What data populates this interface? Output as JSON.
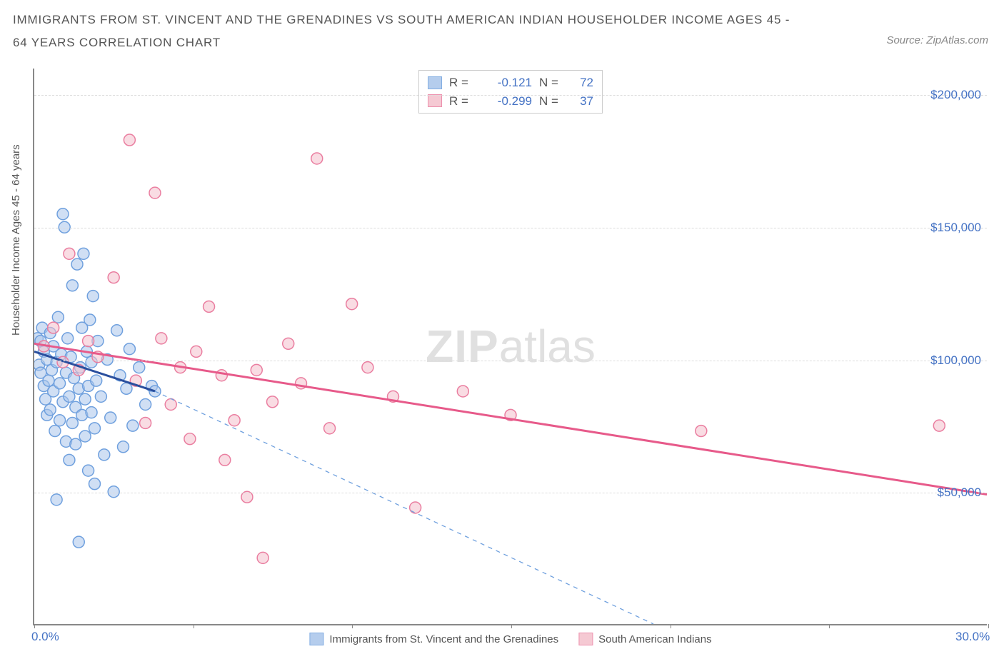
{
  "header": {
    "title": "IMMIGRANTS FROM ST. VINCENT AND THE GRENADINES VS SOUTH AMERICAN INDIAN HOUSEHOLDER INCOME AGES 45 - 64 YEARS CORRELATION CHART",
    "source": "Source: ZipAtlas.com"
  },
  "chart": {
    "type": "scatter",
    "ylabel": "Householder Income Ages 45 - 64 years",
    "watermark_bold": "ZIP",
    "watermark_light": "atlas",
    "xlim": [
      0,
      30
    ],
    "ylim": [
      0,
      210000
    ],
    "x_ticks_percent": [
      0,
      5,
      10,
      15,
      20,
      25,
      30
    ],
    "x_tick_labels": {
      "0": "0.0%",
      "30": "30.0%"
    },
    "y_ticks": [
      50000,
      100000,
      150000,
      200000
    ],
    "y_tick_labels": {
      "50000": "$50,000",
      "100000": "$100,000",
      "150000": "$150,000",
      "200000": "$200,000"
    },
    "gridlines_y": [
      50000,
      100000,
      150000,
      200000
    ],
    "background_color": "#ffffff",
    "grid_color": "#dcdcdc",
    "axis_color": "#888888",
    "point_radius": 8,
    "point_stroke_width": 1.5,
    "series": [
      {
        "name": "Immigrants from St. Vincent and the Grenadines",
        "color_fill": "#a9c5eb",
        "color_stroke": "#6fa0de",
        "fill_opacity": 0.55,
        "legend": {
          "R": "-0.121",
          "N": "72"
        },
        "trend_solid": {
          "x1": 0,
          "y1": 103000,
          "x2": 3.8,
          "y2": 88000,
          "color": "#2a4f9e",
          "width": 3
        },
        "trend_dash": {
          "x1": 3.8,
          "y1": 88000,
          "x2": 19.5,
          "y2": 0,
          "color": "#6fa0de",
          "width": 1.3,
          "dash": "6,6"
        },
        "points": [
          [
            0.1,
            108000
          ],
          [
            0.15,
            98000
          ],
          [
            0.2,
            107000
          ],
          [
            0.2,
            95000
          ],
          [
            0.25,
            112000
          ],
          [
            0.3,
            90000
          ],
          [
            0.3,
            103000
          ],
          [
            0.35,
            85000
          ],
          [
            0.4,
            100000
          ],
          [
            0.4,
            79000
          ],
          [
            0.45,
            92000
          ],
          [
            0.5,
            110000
          ],
          [
            0.5,
            81000
          ],
          [
            0.55,
            96000
          ],
          [
            0.6,
            105000
          ],
          [
            0.6,
            88000
          ],
          [
            0.65,
            73000
          ],
          [
            0.7,
            99000
          ],
          [
            0.7,
            47000
          ],
          [
            0.75,
            116000
          ],
          [
            0.8,
            91000
          ],
          [
            0.8,
            77000
          ],
          [
            0.85,
            102000
          ],
          [
            0.9,
            84000
          ],
          [
            0.9,
            155000
          ],
          [
            0.95,
            150000
          ],
          [
            1.0,
            95000
          ],
          [
            1.0,
            69000
          ],
          [
            1.05,
            108000
          ],
          [
            1.1,
            86000
          ],
          [
            1.1,
            62000
          ],
          [
            1.15,
            101000
          ],
          [
            1.2,
            76000
          ],
          [
            1.2,
            128000
          ],
          [
            1.25,
            93000
          ],
          [
            1.3,
            82000
          ],
          [
            1.3,
            68000
          ],
          [
            1.35,
            136000
          ],
          [
            1.4,
            89000
          ],
          [
            1.4,
            31000
          ],
          [
            1.45,
            97000
          ],
          [
            1.5,
            79000
          ],
          [
            1.5,
            112000
          ],
          [
            1.55,
            140000
          ],
          [
            1.6,
            85000
          ],
          [
            1.6,
            71000
          ],
          [
            1.65,
            103000
          ],
          [
            1.7,
            90000
          ],
          [
            1.7,
            58000
          ],
          [
            1.75,
            115000
          ],
          [
            1.8,
            80000
          ],
          [
            1.8,
            99000
          ],
          [
            1.85,
            124000
          ],
          [
            1.9,
            74000
          ],
          [
            1.9,
            53000
          ],
          [
            1.95,
            92000
          ],
          [
            2.0,
            107000
          ],
          [
            2.1,
            86000
          ],
          [
            2.2,
            64000
          ],
          [
            2.3,
            100000
          ],
          [
            2.4,
            78000
          ],
          [
            2.5,
            50000
          ],
          [
            2.6,
            111000
          ],
          [
            2.7,
            94000
          ],
          [
            2.8,
            67000
          ],
          [
            2.9,
            89000
          ],
          [
            3.0,
            104000
          ],
          [
            3.1,
            75000
          ],
          [
            3.3,
            97000
          ],
          [
            3.5,
            83000
          ],
          [
            3.7,
            90000
          ],
          [
            3.8,
            88000
          ]
        ]
      },
      {
        "name": "South American Indians",
        "color_fill": "#f4c0cc",
        "color_stroke": "#ea7ea0",
        "fill_opacity": 0.55,
        "legend": {
          "R": "-0.299",
          "N": "37"
        },
        "trend_solid": {
          "x1": 0,
          "y1": 106000,
          "x2": 30,
          "y2": 49000,
          "color": "#e75a8a",
          "width": 3
        },
        "points": [
          [
            0.3,
            105000
          ],
          [
            0.6,
            112000
          ],
          [
            0.9,
            99000
          ],
          [
            1.1,
            140000
          ],
          [
            1.4,
            96000
          ],
          [
            1.7,
            107000
          ],
          [
            2.0,
            101000
          ],
          [
            2.5,
            131000
          ],
          [
            3.0,
            183000
          ],
          [
            3.2,
            92000
          ],
          [
            3.5,
            76000
          ],
          [
            3.8,
            163000
          ],
          [
            4.0,
            108000
          ],
          [
            4.3,
            83000
          ],
          [
            4.6,
            97000
          ],
          [
            4.9,
            70000
          ],
          [
            5.1,
            103000
          ],
          [
            5.5,
            120000
          ],
          [
            5.9,
            94000
          ],
          [
            6.3,
            77000
          ],
          [
            6.7,
            48000
          ],
          [
            7.0,
            96000
          ],
          [
            7.2,
            25000
          ],
          [
            7.5,
            84000
          ],
          [
            8.0,
            106000
          ],
          [
            8.4,
            91000
          ],
          [
            8.9,
            176000
          ],
          [
            9.3,
            74000
          ],
          [
            10.0,
            121000
          ],
          [
            10.5,
            97000
          ],
          [
            11.3,
            86000
          ],
          [
            12.0,
            44000
          ],
          [
            13.5,
            88000
          ],
          [
            15.0,
            79000
          ],
          [
            21.0,
            73000
          ],
          [
            28.5,
            75000
          ],
          [
            6.0,
            62000
          ]
        ]
      }
    ]
  }
}
